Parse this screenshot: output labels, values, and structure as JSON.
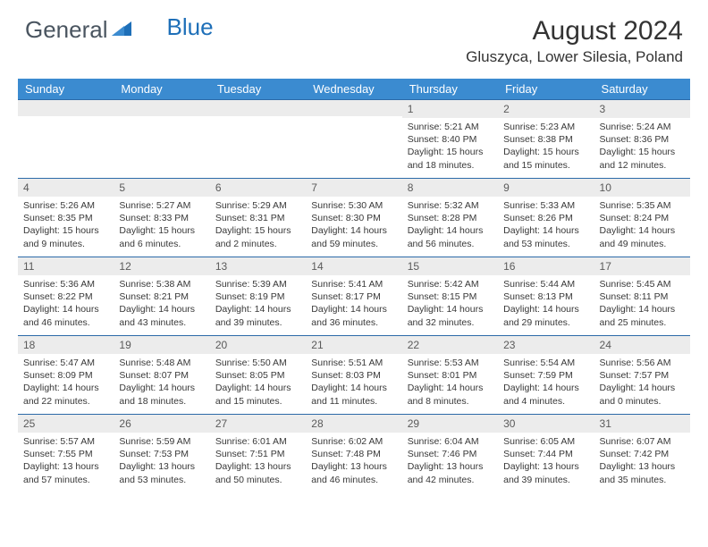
{
  "logo": {
    "text1": "General",
    "text2": "Blue"
  },
  "title": "August 2024",
  "location": "Gluszyca, Lower Silesia, Poland",
  "colors": {
    "header_bg": "#3b8bd0",
    "header_text": "#ffffff",
    "row_border": "#2c6aa8",
    "daynum_bg": "#ececec",
    "daynum_text": "#5a5a5a",
    "body_text": "#383838",
    "logo_blue": "#1e6fb8",
    "logo_gray": "#4a5560"
  },
  "day_headers": [
    "Sunday",
    "Monday",
    "Tuesday",
    "Wednesday",
    "Thursday",
    "Friday",
    "Saturday"
  ],
  "weeks": [
    [
      {
        "n": "",
        "sr": "",
        "ss": "",
        "dl": ""
      },
      {
        "n": "",
        "sr": "",
        "ss": "",
        "dl": ""
      },
      {
        "n": "",
        "sr": "",
        "ss": "",
        "dl": ""
      },
      {
        "n": "",
        "sr": "",
        "ss": "",
        "dl": ""
      },
      {
        "n": "1",
        "sr": "Sunrise: 5:21 AM",
        "ss": "Sunset: 8:40 PM",
        "dl": "Daylight: 15 hours and 18 minutes."
      },
      {
        "n": "2",
        "sr": "Sunrise: 5:23 AM",
        "ss": "Sunset: 8:38 PM",
        "dl": "Daylight: 15 hours and 15 minutes."
      },
      {
        "n": "3",
        "sr": "Sunrise: 5:24 AM",
        "ss": "Sunset: 8:36 PM",
        "dl": "Daylight: 15 hours and 12 minutes."
      }
    ],
    [
      {
        "n": "4",
        "sr": "Sunrise: 5:26 AM",
        "ss": "Sunset: 8:35 PM",
        "dl": "Daylight: 15 hours and 9 minutes."
      },
      {
        "n": "5",
        "sr": "Sunrise: 5:27 AM",
        "ss": "Sunset: 8:33 PM",
        "dl": "Daylight: 15 hours and 6 minutes."
      },
      {
        "n": "6",
        "sr": "Sunrise: 5:29 AM",
        "ss": "Sunset: 8:31 PM",
        "dl": "Daylight: 15 hours and 2 minutes."
      },
      {
        "n": "7",
        "sr": "Sunrise: 5:30 AM",
        "ss": "Sunset: 8:30 PM",
        "dl": "Daylight: 14 hours and 59 minutes."
      },
      {
        "n": "8",
        "sr": "Sunrise: 5:32 AM",
        "ss": "Sunset: 8:28 PM",
        "dl": "Daylight: 14 hours and 56 minutes."
      },
      {
        "n": "9",
        "sr": "Sunrise: 5:33 AM",
        "ss": "Sunset: 8:26 PM",
        "dl": "Daylight: 14 hours and 53 minutes."
      },
      {
        "n": "10",
        "sr": "Sunrise: 5:35 AM",
        "ss": "Sunset: 8:24 PM",
        "dl": "Daylight: 14 hours and 49 minutes."
      }
    ],
    [
      {
        "n": "11",
        "sr": "Sunrise: 5:36 AM",
        "ss": "Sunset: 8:22 PM",
        "dl": "Daylight: 14 hours and 46 minutes."
      },
      {
        "n": "12",
        "sr": "Sunrise: 5:38 AM",
        "ss": "Sunset: 8:21 PM",
        "dl": "Daylight: 14 hours and 43 minutes."
      },
      {
        "n": "13",
        "sr": "Sunrise: 5:39 AM",
        "ss": "Sunset: 8:19 PM",
        "dl": "Daylight: 14 hours and 39 minutes."
      },
      {
        "n": "14",
        "sr": "Sunrise: 5:41 AM",
        "ss": "Sunset: 8:17 PM",
        "dl": "Daylight: 14 hours and 36 minutes."
      },
      {
        "n": "15",
        "sr": "Sunrise: 5:42 AM",
        "ss": "Sunset: 8:15 PM",
        "dl": "Daylight: 14 hours and 32 minutes."
      },
      {
        "n": "16",
        "sr": "Sunrise: 5:44 AM",
        "ss": "Sunset: 8:13 PM",
        "dl": "Daylight: 14 hours and 29 minutes."
      },
      {
        "n": "17",
        "sr": "Sunrise: 5:45 AM",
        "ss": "Sunset: 8:11 PM",
        "dl": "Daylight: 14 hours and 25 minutes."
      }
    ],
    [
      {
        "n": "18",
        "sr": "Sunrise: 5:47 AM",
        "ss": "Sunset: 8:09 PM",
        "dl": "Daylight: 14 hours and 22 minutes."
      },
      {
        "n": "19",
        "sr": "Sunrise: 5:48 AM",
        "ss": "Sunset: 8:07 PM",
        "dl": "Daylight: 14 hours and 18 minutes."
      },
      {
        "n": "20",
        "sr": "Sunrise: 5:50 AM",
        "ss": "Sunset: 8:05 PM",
        "dl": "Daylight: 14 hours and 15 minutes."
      },
      {
        "n": "21",
        "sr": "Sunrise: 5:51 AM",
        "ss": "Sunset: 8:03 PM",
        "dl": "Daylight: 14 hours and 11 minutes."
      },
      {
        "n": "22",
        "sr": "Sunrise: 5:53 AM",
        "ss": "Sunset: 8:01 PM",
        "dl": "Daylight: 14 hours and 8 minutes."
      },
      {
        "n": "23",
        "sr": "Sunrise: 5:54 AM",
        "ss": "Sunset: 7:59 PM",
        "dl": "Daylight: 14 hours and 4 minutes."
      },
      {
        "n": "24",
        "sr": "Sunrise: 5:56 AM",
        "ss": "Sunset: 7:57 PM",
        "dl": "Daylight: 14 hours and 0 minutes."
      }
    ],
    [
      {
        "n": "25",
        "sr": "Sunrise: 5:57 AM",
        "ss": "Sunset: 7:55 PM",
        "dl": "Daylight: 13 hours and 57 minutes."
      },
      {
        "n": "26",
        "sr": "Sunrise: 5:59 AM",
        "ss": "Sunset: 7:53 PM",
        "dl": "Daylight: 13 hours and 53 minutes."
      },
      {
        "n": "27",
        "sr": "Sunrise: 6:01 AM",
        "ss": "Sunset: 7:51 PM",
        "dl": "Daylight: 13 hours and 50 minutes."
      },
      {
        "n": "28",
        "sr": "Sunrise: 6:02 AM",
        "ss": "Sunset: 7:48 PM",
        "dl": "Daylight: 13 hours and 46 minutes."
      },
      {
        "n": "29",
        "sr": "Sunrise: 6:04 AM",
        "ss": "Sunset: 7:46 PM",
        "dl": "Daylight: 13 hours and 42 minutes."
      },
      {
        "n": "30",
        "sr": "Sunrise: 6:05 AM",
        "ss": "Sunset: 7:44 PM",
        "dl": "Daylight: 13 hours and 39 minutes."
      },
      {
        "n": "31",
        "sr": "Sunrise: 6:07 AM",
        "ss": "Sunset: 7:42 PM",
        "dl": "Daylight: 13 hours and 35 minutes."
      }
    ]
  ]
}
